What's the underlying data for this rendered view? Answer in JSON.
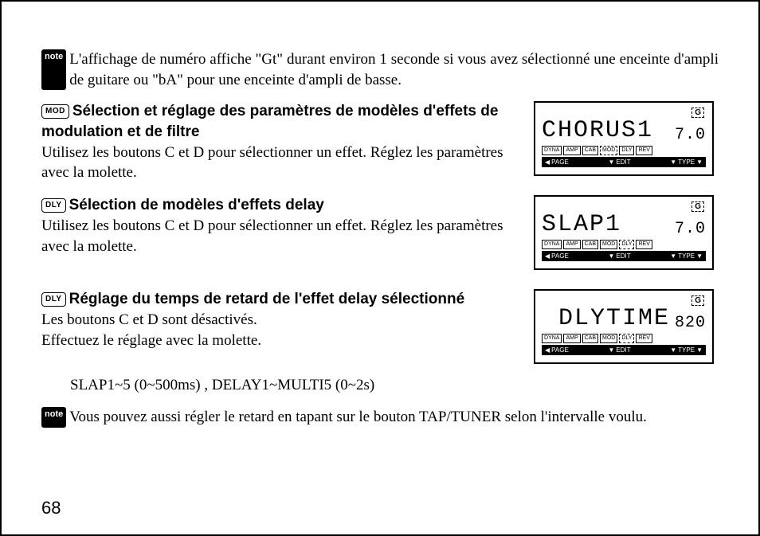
{
  "note_label": "note",
  "note1": "L'affichage de numéro affiche \"Gt\" durant environ 1 seconde si vous avez sélectionné une enceinte d'ampli de guitare ou \"bA\" pour une enceinte d'ampli de basse.",
  "tag_mod": "MOD",
  "tag_dly": "DLY",
  "sec1_title": "Sélection et réglage des paramètres de modèles d'effets de modulation et de filtre",
  "sec1_body": "Utilisez les boutons C et D pour sélectionner un effet. Réglez les paramètres avec la molette.",
  "sec2_title": "Sélection de modèles d'effets delay",
  "sec2_body": "Utilisez les boutons C et D pour sélectionner un effet. Réglez les paramètres avec la molette.",
  "sec3_title": "Réglage du temps de retard de l'effet delay sélectionné",
  "sec3_body1": "Les boutons C et D sont désactivés.",
  "sec3_body2": "Effectuez le réglage avec la molette.",
  "sec3_range": "SLAP1~5 (0~500ms) , DELAY1~MULTI5 (0~2s)",
  "note2": "Vous pouvez aussi régler le retard en tapant sur le bouton TAP/TUNER selon l'intervalle voulu.",
  "page_num": "68",
  "lcd_g": "G",
  "lcd_mods": [
    "DYNA",
    "AMP",
    "CAB",
    "MOD",
    "DLY",
    "REV"
  ],
  "lcd_bottom": {
    "page": "PAGE",
    "edit": "EDIT",
    "type": "TYPE"
  },
  "lcd1": {
    "name": "CHORUS1",
    "val": "7.0",
    "dashed": "MOD"
  },
  "lcd2": {
    "name": "SLAP1",
    "val": "7.0",
    "dashed": "DLY"
  },
  "lcd3": {
    "name": "DLYTIME",
    "val": "820",
    "dashed": "DLY"
  }
}
